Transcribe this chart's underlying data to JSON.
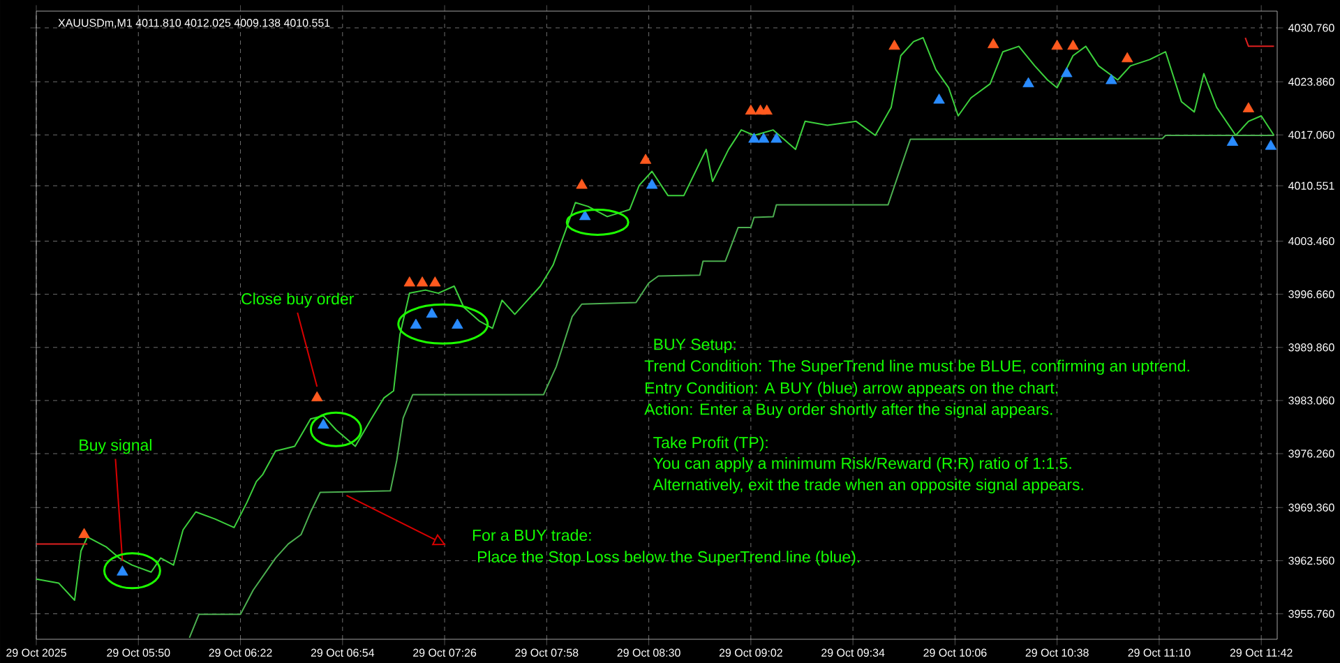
{
  "chart_data": {
    "type": "line",
    "title": "XAUUSDm,M1  4011.810 4012.025 4009.138 4010.551",
    "xlim": [
      "2025-10-29T05:18",
      "2025-10-29T11:47"
    ],
    "ylim": [
      3952.5,
      4032.9
    ],
    "grid": true,
    "xticks": [
      {
        "value": "2025-10-29T05:18",
        "label": "29 Oct 2025"
      },
      {
        "value": "2025-10-29T05:50",
        "label": "29 Oct 05:50"
      },
      {
        "value": "2025-10-29T06:22",
        "label": "29 Oct 06:22"
      },
      {
        "value": "2025-10-29T06:54",
        "label": "29 Oct 06:54"
      },
      {
        "value": "2025-10-29T07:26",
        "label": "29 Oct 07:26"
      },
      {
        "value": "2025-10-29T07:58",
        "label": "29 Oct 07:58"
      },
      {
        "value": "2025-10-29T08:30",
        "label": "29 Oct 08:30"
      },
      {
        "value": "2025-10-29T09:02",
        "label": "29 Oct 09:02"
      },
      {
        "value": "2025-10-29T09:34",
        "label": "29 Oct 09:34"
      },
      {
        "value": "2025-10-29T10:06",
        "label": "29 Oct 10:06"
      },
      {
        "value": "2025-10-29T10:38",
        "label": "29 Oct 10:38"
      },
      {
        "value": "2025-10-29T11:10",
        "label": "29 Oct 11:10"
      },
      {
        "value": "2025-10-29T11:42",
        "label": "29 Oct 11:42"
      }
    ],
    "yticks": [
      {
        "value": 3955.76,
        "label": "3955.760"
      },
      {
        "value": 3962.56,
        "label": "3962.560"
      },
      {
        "value": 3969.36,
        "label": "3969.360"
      },
      {
        "value": 3976.26,
        "label": "3976.260"
      },
      {
        "value": 3983.06,
        "label": "3983.060"
      },
      {
        "value": 3989.86,
        "label": "3989.860"
      },
      {
        "value": 3996.66,
        "label": "3996.660"
      },
      {
        "value": 4003.46,
        "label": "4003.460"
      },
      4010.551,
      {
        "value": 4017.06,
        "label": "4017.060"
      },
      {
        "value": 4023.86,
        "label": "4023.860"
      },
      {
        "value": 4030.76,
        "label": "4030.760"
      }
    ],
    "series": [
      {
        "color": "#3dd13d",
        "x": [
          "2025-10-29T05:18",
          "2025-10-29T05:25",
          "2025-10-29T05:30",
          "2025-10-29T05:32",
          "2025-10-29T05:34",
          "2025-10-29T05:40",
          "2025-10-29T05:44",
          "2025-10-29T05:48",
          "2025-10-29T05:54",
          "2025-10-29T05:57",
          "2025-10-29T06:01",
          "2025-10-29T06:04",
          "2025-10-29T06:08",
          "2025-10-29T06:14",
          "2025-10-29T06:20",
          "2025-10-29T06:24",
          "2025-10-29T06:27",
          "2025-10-29T06:29",
          "2025-10-29T06:33",
          "2025-10-29T06:39",
          "2025-10-29T06:44",
          "2025-10-29T06:48",
          "2025-10-29T06:52",
          "2025-10-29T06:58",
          "2025-10-29T07:03",
          "2025-10-29T07:07",
          "2025-10-29T07:10",
          "2025-10-29T07:12",
          "2025-10-29T07:15",
          "2025-10-29T07:20",
          "2025-10-29T07:24",
          "2025-10-29T07:29",
          "2025-10-29T07:32",
          "2025-10-29T07:37",
          "2025-10-29T07:41",
          "2025-10-29T07:44",
          "2025-10-29T07:48",
          "2025-10-29T07:52",
          "2025-10-29T07:56",
          "2025-10-29T08:00",
          "2025-10-29T08:04",
          "2025-10-29T08:07",
          "2025-10-29T08:11",
          "2025-10-29T08:17",
          "2025-10-29T08:24",
          "2025-10-29T08:27",
          "2025-10-29T08:31",
          "2025-10-29T08:36",
          "2025-10-29T08:41",
          "2025-10-29T08:48",
          "2025-10-29T08:50",
          "2025-10-29T08:55",
          "2025-10-29T08:59",
          "2025-10-29T09:03",
          "2025-10-29T09:09",
          "2025-10-29T09:16",
          "2025-10-29T09:19",
          "2025-10-29T09:26",
          "2025-10-29T09:35",
          "2025-10-29T09:41",
          "2025-10-29T09:46",
          "2025-10-29T09:49",
          "2025-10-29T09:53",
          "2025-10-29T09:56",
          "2025-10-29T10:00",
          "2025-10-29T10:04",
          "2025-10-29T10:07",
          "2025-10-29T10:11",
          "2025-10-29T10:17",
          "2025-10-29T10:21",
          "2025-10-29T10:26",
          "2025-10-29T10:31",
          "2025-10-29T10:35",
          "2025-10-29T10:38",
          "2025-10-29T10:43",
          "2025-10-29T10:47",
          "2025-10-29T10:51",
          "2025-10-29T10:57",
          "2025-10-29T11:01",
          "2025-10-29T11:07",
          "2025-10-29T11:12",
          "2025-10-29T11:17",
          "2025-10-29T11:21",
          "2025-10-29T11:24",
          "2025-10-29T11:28",
          "2025-10-29T11:34",
          "2025-10-29T11:38",
          "2025-10-29T11:42",
          "2025-10-29T11:46"
        ],
        "values": [
          3960.2,
          3959.7,
          3957.5,
          3963.8,
          3965.6,
          3964.3,
          3962.9,
          3962.0,
          3961.1,
          3962.9,
          3962.0,
          3966.5,
          3968.8,
          3967.9,
          3966.8,
          3970.0,
          3972.7,
          3973.6,
          3976.6,
          3977.2,
          3980.7,
          3981.1,
          3979.3,
          3977.2,
          3980.7,
          3983.4,
          3984.3,
          3991.5,
          3996.8,
          3997.2,
          3996.8,
          3997.7,
          3995.0,
          3993.2,
          3992.3,
          3995.9,
          3994.1,
          3995.9,
          3997.7,
          4000.4,
          4004.9,
          4008.4,
          4007.9,
          4006.6,
          4007.5,
          4010.6,
          4012.4,
          4009.3,
          4009.3,
          4015.2,
          4011.1,
          4015.2,
          4017.7,
          4017.0,
          4017.7,
          4015.2,
          4018.8,
          4018.3,
          4018.8,
          4017.0,
          4020.6,
          4027.2,
          4029.0,
          4029.5,
          4025.4,
          4023.1,
          4019.5,
          4021.8,
          4023.6,
          4027.7,
          4028.4,
          4025.9,
          4024.1,
          4023.1,
          4027.2,
          4028.4,
          4025.9,
          4024.1,
          4025.9,
          4026.7,
          4027.7,
          4021.3,
          4020.0,
          4024.9,
          4020.6,
          4017.0,
          4018.8,
          4019.5,
          4017.0
        ]
      },
      {
        "color": "#4caf50",
        "x": [
          "2025-10-29T06:06",
          "2025-10-29T06:09",
          "2025-10-29T06:22",
          "2025-10-29T06:26",
          "2025-10-29T06:33",
          "2025-10-29T06:37",
          "2025-10-29T06:41",
          "2025-10-29T06:44",
          "2025-10-29T06:47",
          "2025-10-29T07:09",
          "2025-10-29T07:11",
          "2025-10-29T07:13",
          "2025-10-29T07:16",
          "2025-10-29T07:57",
          "2025-10-29T08:01",
          "2025-10-29T08:06",
          "2025-10-29T08:09",
          "2025-10-29T08:26",
          "2025-10-29T08:30",
          "2025-10-29T08:33",
          "2025-10-29T08:46",
          "2025-10-29T08:47",
          "2025-10-29T08:54",
          "2025-10-29T08:58",
          "2025-10-29T09:02",
          "2025-10-29T09:03",
          "2025-10-29T09:09",
          "2025-10-29T09:10",
          "2025-10-29T09:45",
          "2025-10-29T09:52",
          "2025-10-29T11:11",
          "2025-10-29T11:12",
          "2025-10-29T11:46"
        ],
        "values": [
          3952.7,
          3955.7,
          3955.7,
          3958.8,
          3962.9,
          3964.7,
          3965.9,
          3968.8,
          3971.3,
          3971.5,
          3975.4,
          3980.8,
          3983.8,
          3983.8,
          3987.4,
          3993.8,
          3995.4,
          3995.6,
          3998.1,
          3999.0,
          3999.1,
          4000.9,
          4000.9,
          4005.2,
          4005.2,
          4006.5,
          4006.6,
          4008.1,
          4008.1,
          4016.5,
          4016.6,
          4017.0,
          4017.0
        ]
      },
      {
        "color": "#e02020",
        "x": [
          "2025-10-29T05:18",
          "2025-10-29T05:34",
          "2025-10-29T08:00",
          "2025-10-29T11:37",
          "2025-10-29T11:38",
          "2025-10-29T11:46"
        ],
        "values": [
          3964.7,
          3964.7,
          null,
          4029.5,
          4028.4,
          4028.4
        ]
      },
      {
        "type": "scatter",
        "color": "#ff5a1f",
        "marker": "triangle",
        "x": [
          "2025-10-29T05:33",
          "2025-10-29T06:46",
          "2025-10-29T07:15",
          "2025-10-29T07:19",
          "2025-10-29T07:23",
          "2025-10-29T08:09",
          "2025-10-29T08:29",
          "2025-10-29T09:02",
          "2025-10-29T09:05",
          "2025-10-29T09:07",
          "2025-10-29T09:47",
          "2025-10-29T10:18",
          "2025-10-29T10:38",
          "2025-10-29T10:43",
          "2025-10-29T11:00",
          "2025-10-29T11:38"
        ],
        "values": [
          3965.9,
          3983.4,
          3998.1,
          3998.1,
          3998.1,
          4010.6,
          4013.8,
          4020.1,
          4020.1,
          4020.1,
          4028.4,
          4028.6,
          4028.4,
          4028.4,
          4026.8,
          4020.4
        ]
      },
      {
        "type": "scatter",
        "color": "#2a8cff",
        "marker": "triangle",
        "x": [
          "2025-10-29T05:45",
          "2025-10-29T06:48",
          "2025-10-29T07:17",
          "2025-10-29T07:22",
          "2025-10-29T07:30",
          "2025-10-29T08:10",
          "2025-10-29T08:31",
          "2025-10-29T09:03",
          "2025-10-29T09:06",
          "2025-10-29T09:10",
          "2025-10-29T10:01",
          "2025-10-29T10:29",
          "2025-10-29T10:41",
          "2025-10-29T10:55",
          "2025-10-29T11:33",
          "2025-10-29T11:45"
        ],
        "values": [
          3961.1,
          3979.9,
          3992.7,
          3994.1,
          3992.7,
          4006.6,
          4010.6,
          4016.5,
          4016.5,
          4016.5,
          4021.5,
          4023.6,
          4024.9,
          4024.0,
          4016.1,
          4015.6
        ]
      }
    ],
    "annotations": [
      {
        "text": "Buy signal",
        "x": "2025-10-29T05:45",
        "y": 3961.1
      },
      {
        "text": "Close buy order",
        "x": "2025-10-29T06:46",
        "y": 3983.4
      },
      "For a BUY trade:",
      "Place the Stop Loss below the SuperTrend line (blue).",
      "BUY Setup:",
      "Trend Condition: The SuperTrend line must be BLUE, confirming an uptrend.",
      "Entry Condition: A BUY (blue) arrow appears on the chart.",
      "Action: Enter a Buy order shortly after the signal appears.",
      "Take Profit (TP):",
      "You can apply a minimum Risk/Reward (R:R) ratio of 1:1.5.",
      "Alternatively, exit the trade when an opposite signal appears."
    ]
  }
}
